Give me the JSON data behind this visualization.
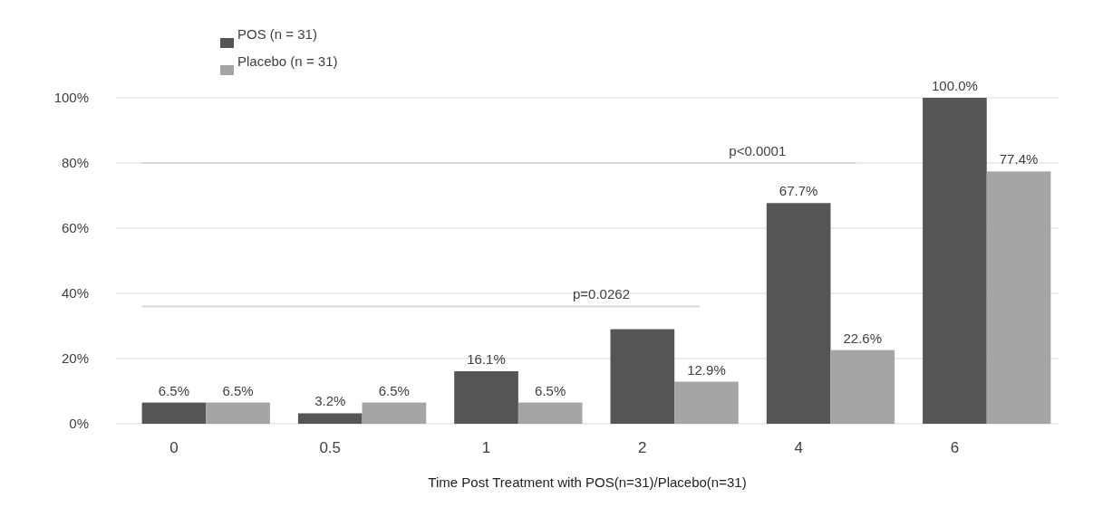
{
  "chart_data": {
    "type": "bar",
    "xlabel": "Time Post Treatment with POS(n=31)/Placebo(n=31)",
    "categories": [
      "0",
      "0.5",
      "1",
      "2",
      "4",
      "6"
    ],
    "series": [
      {
        "name": "POS (n = 31)",
        "color": "#555555",
        "values": [
          6.5,
          3.2,
          16.1,
          29.0,
          67.7,
          100.0
        ],
        "value_labels": [
          "6.5%",
          "3.2%",
          "16.1%",
          null,
          "67.7%",
          "100.0%"
        ]
      },
      {
        "name": "Placebo (n = 31)",
        "color": "#a5a5a5",
        "values": [
          6.5,
          6.5,
          6.5,
          12.9,
          22.6,
          77.4
        ],
        "value_labels": [
          "6.5%",
          "6.5%",
          "6.5%",
          "12.9%",
          "22.6%",
          "77.4%"
        ]
      }
    ],
    "ylim": [
      0,
      100
    ],
    "yticks": [
      {
        "value": 0,
        "label": "0%"
      },
      {
        "value": 20,
        "label": "20%"
      },
      {
        "value": 40,
        "label": "40%"
      },
      {
        "value": 60,
        "label": "60%"
      },
      {
        "value": 80,
        "label": "80%"
      },
      {
        "value": 100,
        "label": "100%"
      }
    ],
    "grid": "y",
    "legend": "top left",
    "ref_lines": [
      {
        "axis": "y",
        "value": 36,
        "color": "#d9d9d9"
      },
      {
        "axis": "y",
        "value": 80,
        "color": "#d9d9d9"
      }
    ],
    "annotations": [
      "p=0.0262",
      "p<0.0001"
    ]
  }
}
